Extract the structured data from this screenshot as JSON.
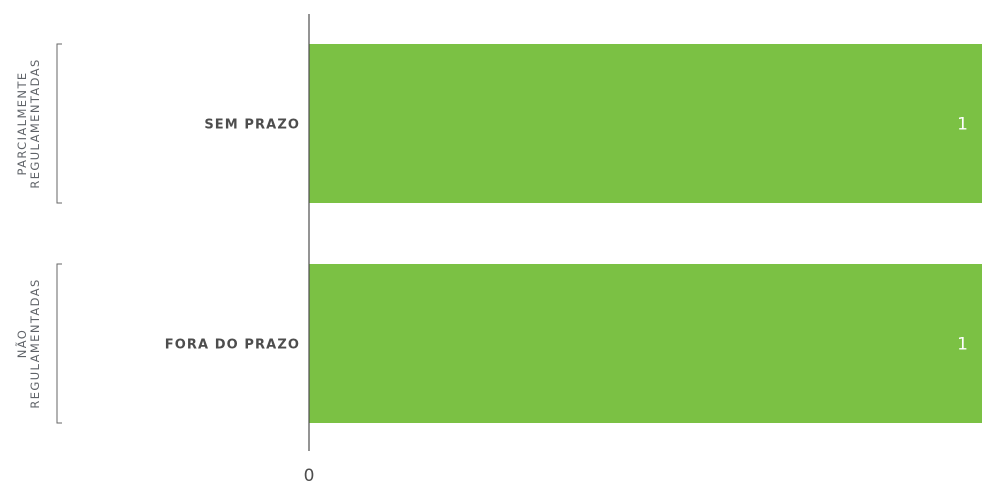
{
  "chart_data": {
    "type": "bar",
    "orientation": "horizontal",
    "groups": [
      {
        "label_lines": [
          "PARCIALMENTE",
          "REGULAMENTADAS"
        ],
        "categories": [
          "SEM PRAZO"
        ]
      },
      {
        "label_lines": [
          "NÃO",
          "REGULAMENTADAS"
        ],
        "categories": [
          "FORA DO PRAZO"
        ]
      }
    ],
    "categories": [
      "SEM PRAZO",
      "FORA DO PRAZO"
    ],
    "values": [
      1,
      1
    ],
    "data_labels": [
      "1",
      "1"
    ],
    "x_ticks": [
      "0"
    ],
    "xlim": [
      0,
      1
    ],
    "grid": false,
    "legend": "none",
    "colors": {
      "bar": "#7bc144",
      "axis": "#4d4d4d",
      "text": "#4d4d4d",
      "bracket": "#666666"
    }
  }
}
